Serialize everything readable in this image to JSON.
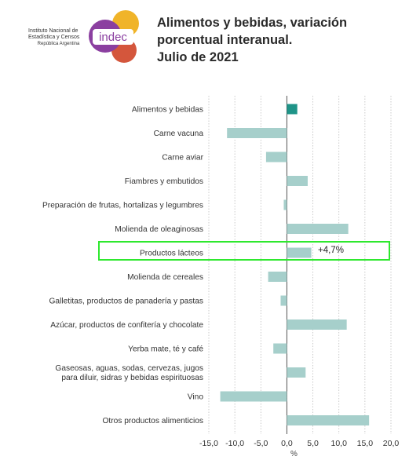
{
  "org": {
    "line1": "Instituto Nacional de",
    "line2": "Estadística y Censos",
    "line3": "República Argentina",
    "logo_text": "indec",
    "colors": [
      "#f0b429",
      "#8b3fa0",
      "#d4563c"
    ]
  },
  "title": {
    "line1": "Alimentos y bebidas, variación",
    "line2": "porcentual interanual.",
    "line3": "Julio de 2021"
  },
  "chart_data": {
    "type": "bar",
    "orientation": "horizontal",
    "categories": [
      "Alimentos y bebidas",
      "Carne vacuna",
      "Carne aviar",
      "Fiambres y embutidos",
      "Preparación de frutas, hortalizas y legumbres",
      "Molienda de oleaginosas",
      "Productos lácteos",
      "Molienda de cereales",
      "Galletitas, productos de panadería y pastas",
      "Azúcar, productos de confitería y chocolate",
      "Yerba mate, té y café",
      "Gaseosas, aguas, sodas, cervezas, jugos\npara diluir, sidras y bebidas espirituosas",
      "Vino",
      "Otros productos alimenticios"
    ],
    "values": [
      2.0,
      -11.5,
      -4.0,
      4.0,
      -0.6,
      11.8,
      4.7,
      -3.6,
      -1.2,
      11.5,
      -2.6,
      3.6,
      -12.8,
      15.8
    ],
    "xlim": [
      -15,
      20
    ],
    "ticks": [
      "-15,0",
      "-10,0",
      "-5,0",
      "0,0",
      "5,0",
      "10,0",
      "15,0",
      "20,0"
    ],
    "xlabel": "%",
    "grid": true,
    "colors": {
      "total": "#1f9488",
      "other": "#a6cfcb",
      "highlight": "#2ee82e"
    },
    "highlight_index": 6,
    "annotation": "+4,7%"
  }
}
